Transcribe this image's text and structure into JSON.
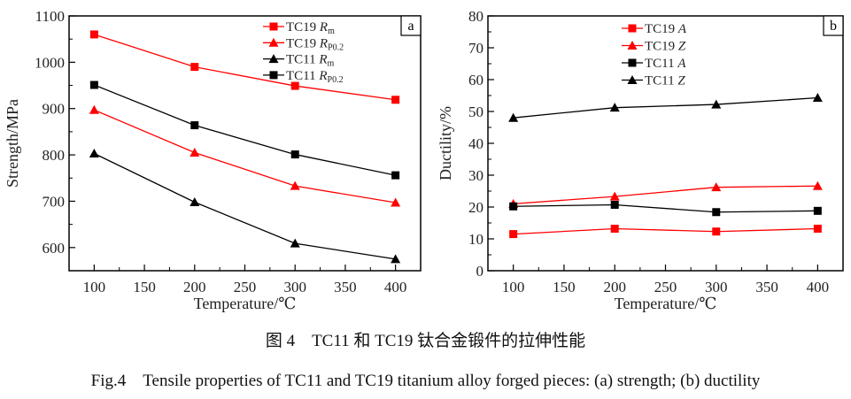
{
  "chart_data": [
    {
      "type": "line",
      "panel_label": "a",
      "xlabel": "Temperature/℃",
      "ylabel": "Strength/MPa",
      "xlim": [
        75,
        425
      ],
      "ylim": [
        550,
        1100
      ],
      "xticks": [
        100,
        150,
        200,
        250,
        300,
        350,
        400
      ],
      "yticks": [
        600,
        700,
        800,
        900,
        1000,
        1100
      ],
      "grid": false,
      "legend_position": "top-right",
      "x": [
        100,
        200,
        300,
        400
      ],
      "series": [
        {
          "name": "TC19 Rm",
          "prefix": "TC19 ",
          "sym": "R",
          "sub": "m",
          "color": "#ff0000",
          "marker": "square",
          "values": [
            1060,
            990,
            949,
            919
          ]
        },
        {
          "name": "TC19 RP0.2",
          "prefix": "TC19 ",
          "sym": "R",
          "sub": "P0.2",
          "color": "#ff0000",
          "marker": "triangle",
          "values": [
            897,
            805,
            733,
            697
          ]
        },
        {
          "name": "TC11 Rm",
          "prefix": "TC11 ",
          "sym": "R",
          "sub": "m",
          "color": "#000000",
          "marker": "triangle",
          "values": [
            803,
            698,
            609,
            575
          ]
        },
        {
          "name": "TC11 RP0.2",
          "prefix": "TC11 ",
          "sym": "R",
          "sub": "P0.2",
          "color": "#000000",
          "marker": "square",
          "values": [
            951,
            864,
            801,
            756
          ]
        }
      ]
    },
    {
      "type": "line",
      "panel_label": "b",
      "xlabel": "Temperature/℃",
      "ylabel": "Ductility/%",
      "xlim": [
        75,
        425
      ],
      "ylim": [
        0,
        80
      ],
      "xticks": [
        100,
        150,
        200,
        250,
        300,
        350,
        400
      ],
      "yticks": [
        0,
        10,
        20,
        30,
        40,
        50,
        60,
        70,
        80
      ],
      "grid": false,
      "legend_position": "top-center",
      "x": [
        100,
        200,
        300,
        400
      ],
      "series": [
        {
          "name": "TC19 A",
          "prefix": "TC19 ",
          "sym": "A",
          "sub": "",
          "color": "#ff0000",
          "marker": "square",
          "values": [
            11.5,
            13.2,
            12.3,
            13.2
          ]
        },
        {
          "name": "TC19 Z",
          "prefix": "TC19 ",
          "sym": "Z",
          "sub": "",
          "color": "#ff0000",
          "marker": "triangle",
          "values": [
            21.0,
            23.3,
            26.2,
            26.6
          ]
        },
        {
          "name": "TC11 A",
          "prefix": "TC11 ",
          "sym": "A",
          "sub": "",
          "color": "#000000",
          "marker": "square",
          "values": [
            20.2,
            20.7,
            18.4,
            18.8
          ]
        },
        {
          "name": "TC11 Z",
          "prefix": "TC11 ",
          "sym": "Z",
          "sub": "",
          "color": "#000000",
          "marker": "triangle",
          "values": [
            48.0,
            51.2,
            52.2,
            54.3
          ]
        }
      ]
    }
  ],
  "caption": {
    "cn": "图 4　TC11 和 TC19 钛合金锻件的拉伸性能",
    "en": "Fig.4　Tensile properties of TC11 and TC19 titanium alloy forged pieces: (a) strength; (b) ductility"
  }
}
